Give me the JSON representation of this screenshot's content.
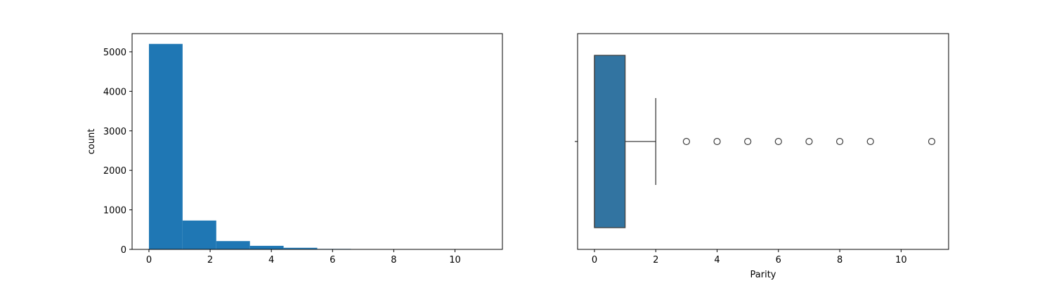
{
  "chart_data": [
    {
      "type": "bar",
      "subtype": "histogram",
      "xlabel": "",
      "ylabel": "count",
      "xlim": [
        -0.55,
        11.55
      ],
      "ylim": [
        0,
        5460
      ],
      "xticks": [
        0,
        2,
        4,
        6,
        8,
        10
      ],
      "yticks": [
        0,
        1000,
        2000,
        3000,
        4000,
        5000
      ],
      "bin_edges": [
        0,
        1.1,
        2.2,
        3.3,
        4.4,
        5.5,
        6.6,
        7.7,
        8.8,
        9.9,
        11
      ],
      "values": [
        5200,
        730,
        210,
        90,
        40,
        12,
        5,
        3,
        1,
        1
      ],
      "color": "#1f77b4",
      "grid": false
    },
    {
      "type": "box",
      "xlabel": "Parity",
      "ylabel": "",
      "xlim": [
        -0.55,
        11.55
      ],
      "xticks": [
        0,
        2,
        4,
        6,
        8,
        10
      ],
      "box": {
        "q1": 0,
        "median": 0,
        "q3": 1,
        "whisker_low": 0,
        "whisker_high": 2
      },
      "outliers": [
        3,
        4,
        5,
        6,
        7,
        8,
        9,
        11
      ],
      "color": "#3274a1",
      "grid": false
    }
  ]
}
